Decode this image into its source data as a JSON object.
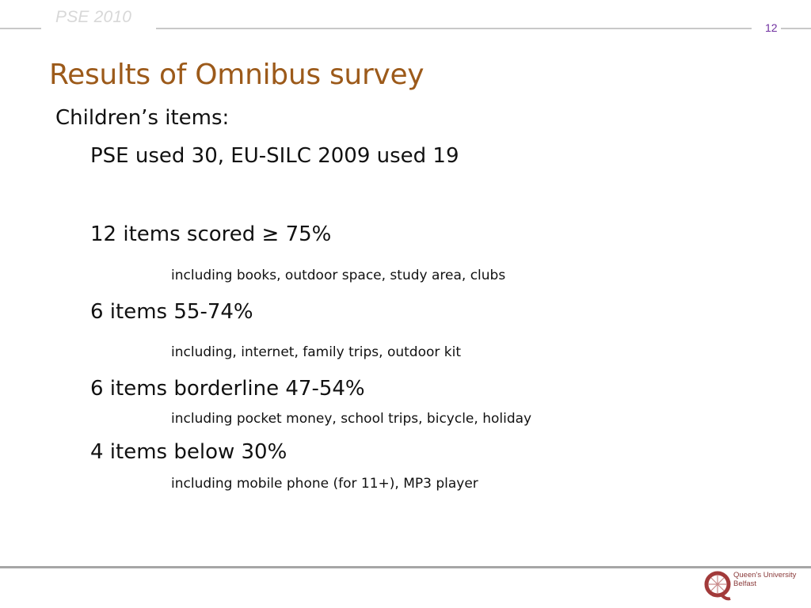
{
  "header": {
    "brand": "PSE 2010",
    "page_number": "12"
  },
  "title": "Results of Omnibus survey",
  "content": {
    "heading": "Children’s items:",
    "lines": [
      {
        "text": "PSE used 30, EU-SILC 2009 used 19",
        "level": 1
      },
      {
        "text": "12 items scored ≥ 75%",
        "level": 1
      },
      {
        "text": "including books, outdoor space, study area, clubs",
        "level": 2
      },
      {
        "text": "6 items 55-74%",
        "level": 1
      },
      {
        "text": "including, internet, family trips, outdoor kit",
        "level": 2
      },
      {
        "text": "6 items borderline 47-54%",
        "level": 1
      },
      {
        "text": "including pocket money, school trips, bicycle, holiday",
        "level": 2
      },
      {
        "text": "4 items below 30%",
        "level": 1
      },
      {
        "text": "including mobile phone (for 11+), MP3 player",
        "level": 2
      }
    ]
  },
  "footer": {
    "logo_line1": "Queen's University",
    "logo_line2": "Belfast",
    "logo_color": "#a23a3a"
  }
}
